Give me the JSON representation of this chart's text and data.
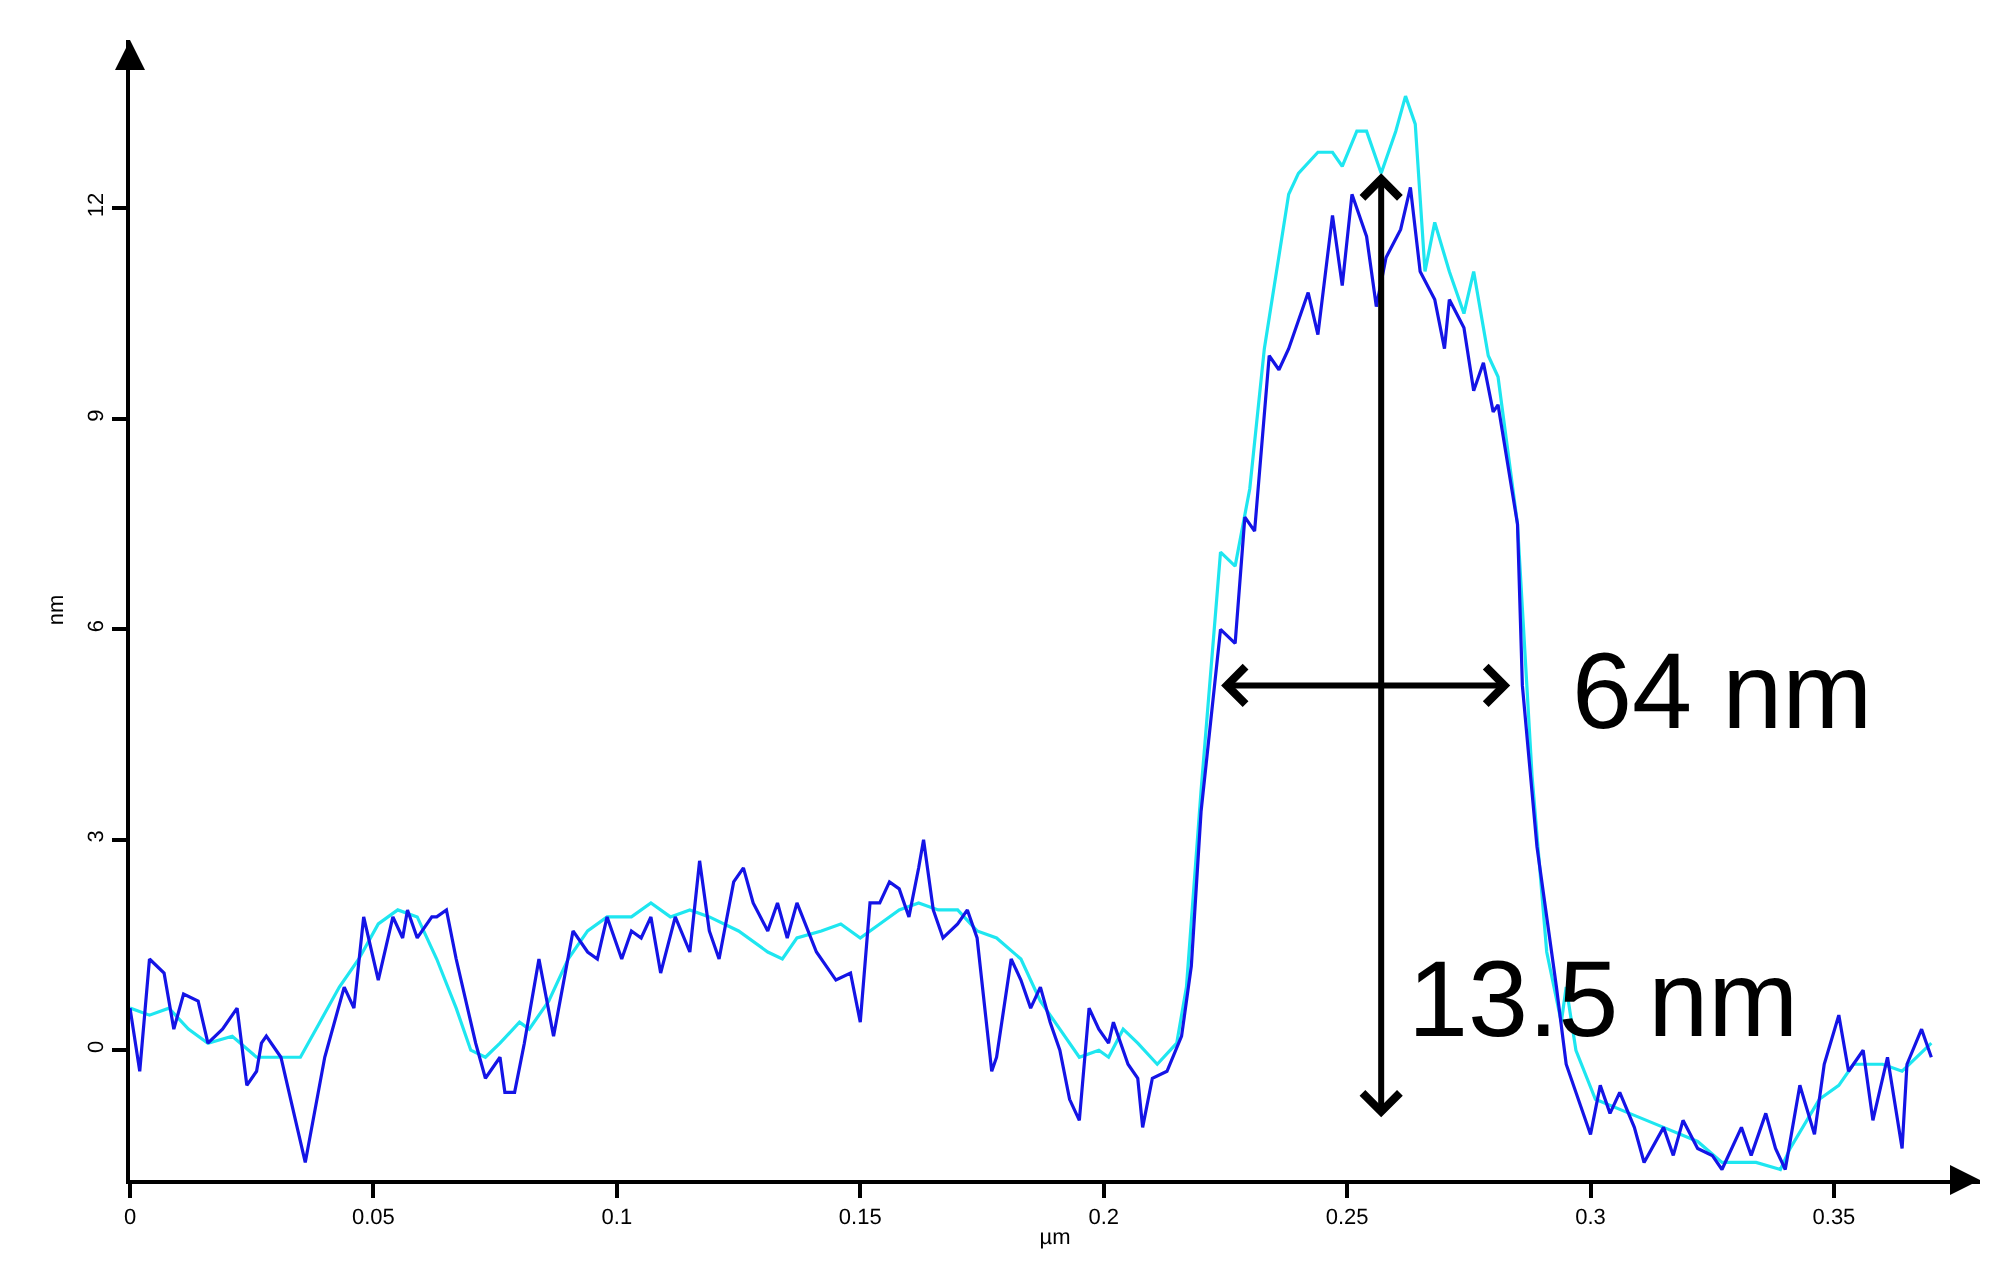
{
  "chart_data": {
    "type": "line",
    "xlabel": "µm",
    "ylabel": "nm",
    "xlim": [
      0,
      0.38
    ],
    "ylim": [
      -1.85,
      14.4
    ],
    "xticks": [
      0,
      0.05,
      0.1,
      0.15,
      0.2,
      0.25,
      0.3,
      0.35
    ],
    "yticks": [
      0,
      3,
      6,
      9,
      12
    ],
    "marker": "none",
    "line_style": "solid",
    "annotations": [
      {
        "text": "64 nm",
        "x": 0.286,
        "y": 5.2
      },
      {
        "text": "13.5 nm",
        "x": 0.257,
        "y": 12.5
      }
    ],
    "series": [
      {
        "color": "#1ee6f0",
        "x": [
          0,
          0.004,
          0.008,
          0.012,
          0.016,
          0.021,
          0.026,
          0.031,
          0.035,
          0.039,
          0.043,
          0.047,
          0.051,
          0.055,
          0.059,
          0.063,
          0.067,
          0.07,
          0.073,
          0.076,
          0.08,
          0.082,
          0.086,
          0.09,
          0.094,
          0.098,
          0.103,
          0.107,
          0.111,
          0.115,
          0.119,
          0.125,
          0.131,
          0.134,
          0.137,
          0.142,
          0.146,
          0.15,
          0.154,
          0.158,
          0.162,
          0.166,
          0.17,
          0.174,
          0.178,
          0.183,
          0.187,
          0.191,
          0.195,
          0.199,
          0.201,
          0.204,
          0.207,
          0.211,
          0.215,
          0.217,
          0.22,
          0.224,
          0.227,
          0.23,
          0.233,
          0.238,
          0.24,
          0.244,
          0.247,
          0.249,
          0.252,
          0.254,
          0.257,
          0.26,
          0.262,
          0.264,
          0.266,
          0.268,
          0.271,
          0.274,
          0.276,
          0.279,
          0.281,
          0.285,
          0.288,
          0.291,
          0.294,
          0.295,
          0.297,
          0.301,
          0.308,
          0.315,
          0.322,
          0.327,
          0.334,
          0.339,
          0.341,
          0.347,
          0.351,
          0.354,
          0.36,
          0.364,
          0.37
        ],
        "values": [
          0.6,
          0.5,
          0.6,
          0.3,
          0.1,
          0.2,
          -0.1,
          -0.1,
          -0.1,
          0.4,
          0.9,
          1.3,
          1.8,
          2.0,
          1.9,
          1.3,
          0.6,
          0.0,
          -0.1,
          0.1,
          0.4,
          0.3,
          0.7,
          1.3,
          1.7,
          1.9,
          1.9,
          2.1,
          1.9,
          2.0,
          1.9,
          1.7,
          1.4,
          1.3,
          1.6,
          1.7,
          1.8,
          1.6,
          1.8,
          2.0,
          2.1,
          2.0,
          2.0,
          1.7,
          1.6,
          1.3,
          0.7,
          0.3,
          -0.1,
          0.0,
          -0.1,
          0.3,
          0.1,
          -0.2,
          0.1,
          0.9,
          3.7,
          7.1,
          6.9,
          8.0,
          10.0,
          12.2,
          12.5,
          12.8,
          12.8,
          12.6,
          13.1,
          13.1,
          12.5,
          13.1,
          13.6,
          13.2,
          11.1,
          11.8,
          11.1,
          10.5,
          11.1,
          9.9,
          9.6,
          7.5,
          3.9,
          1.4,
          0.4,
          0.9,
          0.0,
          -0.7,
          -0.9,
          -1.1,
          -1.3,
          -1.6,
          -1.6,
          -1.7,
          -1.4,
          -0.7,
          -0.5,
          -0.2,
          -0.2,
          -0.3,
          0.1
        ]
      },
      {
        "color": "#1414e6",
        "x": [
          0,
          0.002,
          0.004,
          0.007,
          0.009,
          0.011,
          0.014,
          0.016,
          0.019,
          0.022,
          0.024,
          0.026,
          0.027,
          0.028,
          0.031,
          0.034,
          0.036,
          0.04,
          0.044,
          0.046,
          0.048,
          0.051,
          0.054,
          0.056,
          0.057,
          0.059,
          0.062,
          0.063,
          0.065,
          0.067,
          0.071,
          0.073,
          0.076,
          0.077,
          0.079,
          0.081,
          0.084,
          0.087,
          0.091,
          0.094,
          0.096,
          0.098,
          0.101,
          0.103,
          0.105,
          0.107,
          0.109,
          0.112,
          0.115,
          0.117,
          0.119,
          0.121,
          0.124,
          0.126,
          0.128,
          0.131,
          0.133,
          0.135,
          0.137,
          0.141,
          0.145,
          0.148,
          0.15,
          0.152,
          0.154,
          0.156,
          0.158,
          0.16,
          0.162,
          0.163,
          0.165,
          0.167,
          0.17,
          0.172,
          0.174,
          0.177,
          0.178,
          0.181,
          0.183,
          0.185,
          0.187,
          0.189,
          0.191,
          0.193,
          0.195,
          0.197,
          0.199,
          0.201,
          0.202,
          0.205,
          0.207,
          0.208,
          0.21,
          0.213,
          0.216,
          0.218,
          0.22,
          0.224,
          0.227,
          0.229,
          0.231,
          0.234,
          0.236,
          0.238,
          0.242,
          0.244,
          0.247,
          0.249,
          0.251,
          0.254,
          0.256,
          0.258,
          0.261,
          0.263,
          0.265,
          0.268,
          0.27,
          0.271,
          0.274,
          0.276,
          0.278,
          0.28,
          0.281,
          0.285,
          0.286,
          0.289,
          0.293,
          0.295,
          0.3,
          0.302,
          0.304,
          0.306,
          0.309,
          0.311,
          0.315,
          0.317,
          0.319,
          0.322,
          0.325,
          0.327,
          0.331,
          0.333,
          0.336,
          0.338,
          0.34,
          0.343,
          0.346,
          0.348,
          0.351,
          0.353,
          0.356,
          0.358,
          0.361,
          0.364,
          0.365,
          0.368,
          0.37
        ],
        "values": [
          0.6,
          -0.3,
          1.3,
          1.1,
          0.3,
          0.8,
          0.7,
          0.1,
          0.3,
          0.6,
          -0.5,
          -0.3,
          0.1,
          0.2,
          -0.1,
          -1.0,
          -1.6,
          -0.1,
          0.9,
          0.6,
          1.9,
          1.0,
          1.9,
          1.6,
          2.0,
          1.6,
          1.9,
          1.9,
          2.0,
          1.3,
          0.1,
          -0.4,
          -0.1,
          -0.6,
          -0.6,
          0.1,
          1.3,
          0.2,
          1.7,
          1.4,
          1.3,
          1.9,
          1.3,
          1.7,
          1.6,
          1.9,
          1.1,
          1.9,
          1.4,
          2.7,
          1.7,
          1.3,
          2.4,
          2.6,
          2.1,
          1.7,
          2.1,
          1.6,
          2.1,
          1.4,
          1.0,
          1.1,
          0.4,
          2.1,
          2.1,
          2.4,
          2.3,
          1.9,
          2.6,
          3.0,
          2.0,
          1.6,
          1.8,
          2.0,
          1.6,
          -0.3,
          -0.1,
          1.3,
          1.0,
          0.6,
          0.9,
          0.4,
          0.0,
          -0.7,
          -1.0,
          0.6,
          0.3,
          0.1,
          0.4,
          -0.2,
          -0.4,
          -1.1,
          -0.4,
          -0.3,
          0.2,
          1.2,
          3.4,
          6.0,
          5.8,
          7.6,
          7.4,
          9.9,
          9.7,
          10.0,
          10.8,
          10.2,
          11.9,
          10.9,
          12.2,
          11.6,
          10.6,
          11.3,
          11.7,
          12.3,
          11.1,
          10.7,
          10.0,
          10.7,
          10.3,
          9.4,
          9.8,
          9.1,
          9.2,
          7.5,
          5.2,
          2.9,
          0.9,
          -0.2,
          -1.2,
          -0.5,
          -0.9,
          -0.6,
          -1.1,
          -1.6,
          -1.1,
          -1.5,
          -1.0,
          -1.4,
          -1.5,
          -1.7,
          -1.1,
          -1.5,
          -0.9,
          -1.4,
          -1.7,
          -0.5,
          -1.2,
          -0.2,
          0.5,
          -0.3,
          0.0,
          -1.0,
          -0.1,
          -1.4,
          -0.2,
          0.3,
          -0.1
        ]
      }
    ]
  }
}
